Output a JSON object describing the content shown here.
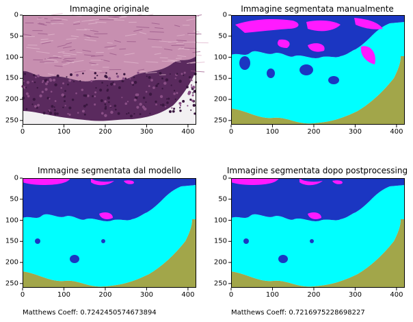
{
  "panels": [
    {
      "title": "Immagine originale",
      "kind": "histology",
      "x_ticks": [
        "0",
        "100",
        "200",
        "300",
        "400"
      ],
      "y_ticks": [
        "0",
        "50",
        "100",
        "150",
        "200",
        "250"
      ]
    },
    {
      "title": "Immagine segmentata manualmente",
      "kind": "segmentation",
      "variant": "manual",
      "x_ticks": [
        "0",
        "100",
        "200",
        "300",
        "400"
      ],
      "y_ticks": [
        "0",
        "50",
        "100",
        "150",
        "200",
        "250"
      ]
    },
    {
      "title": "Immagine segmentata dal modello",
      "kind": "segmentation",
      "variant": "model",
      "x_ticks": [
        "0",
        "100",
        "200",
        "300",
        "400"
      ],
      "y_ticks": [
        "0",
        "50",
        "100",
        "150",
        "200",
        "250"
      ]
    },
    {
      "title": "Immagine segmentata dopo postprocessing",
      "kind": "segmentation",
      "variant": "post",
      "x_ticks": [
        "0",
        "100",
        "200",
        "300",
        "400"
      ],
      "y_ticks": [
        "0",
        "50",
        "100",
        "150",
        "200",
        "250"
      ]
    }
  ],
  "footer": {
    "left": "Matthews Coeff: 0.7242450574673894",
    "right": "Matthews Coeff: 0.7216975228698227"
  },
  "colors": {
    "dermis": "#1b36c2",
    "epidermis": "#00ffff",
    "keratin": "#a2a64a",
    "magenta": "#ff1aff",
    "background": "#ffffff",
    "tissue_base": "#b98aa6"
  }
}
